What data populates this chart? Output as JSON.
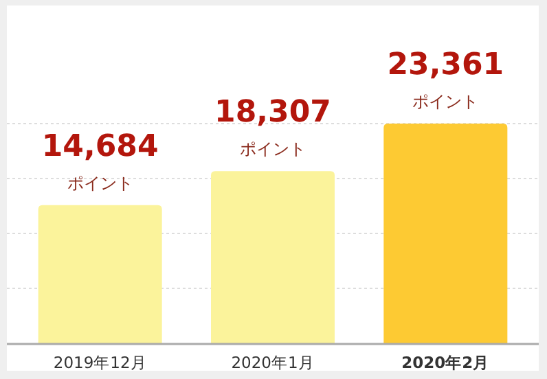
{
  "chart_data": {
    "type": "bar",
    "categories": [
      "2019年12月",
      "2020年1月",
      "**2020年2月**"
    ],
    "values": [
      14684,
      18307,
      23361
    ],
    "colors": [
      "#fbf39b",
      "#fbf39b",
      "#fdca33"
    ],
    "value_labels": [
      "14,684 ポイント",
      "18,307 ポイント",
      "23,361 ポイント"
    ],
    "yticks": [
      {
        "value": 5840,
        "label": null
      },
      {
        "value": 11680,
        "label": null
      },
      {
        "value": 17520,
        "label": null
      },
      {
        "value": 23360,
        "label": null
      }
    ],
    "grid": "y"
  }
}
